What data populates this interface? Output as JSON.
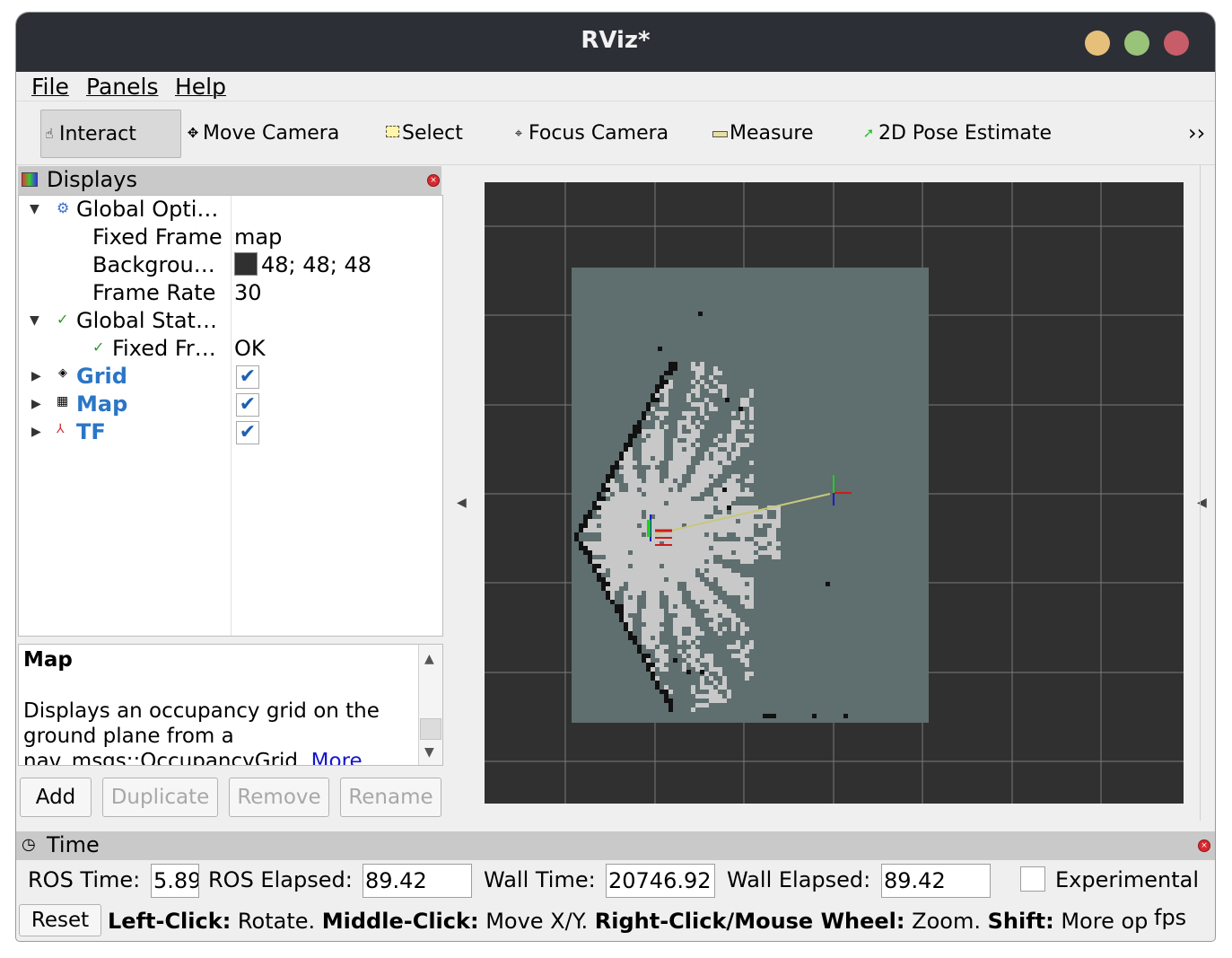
{
  "window": {
    "title": "RViz*"
  },
  "colors": {
    "close": "#c75d68",
    "minimize": "#e6c07b",
    "maximize": "#98c379"
  },
  "menu": [
    "File",
    "Panels",
    "Help"
  ],
  "toolbar": {
    "tools": [
      {
        "label": "Interact",
        "icon": "hand-icon"
      },
      {
        "label": "Move Camera",
        "icon": "move-icon"
      },
      {
        "label": "Select",
        "icon": "select-icon"
      },
      {
        "label": "Focus Camera",
        "icon": "focus-icon"
      },
      {
        "label": "Measure",
        "icon": "ruler-icon"
      },
      {
        "label": "2D Pose Estimate",
        "icon": "pose-arrow-icon"
      }
    ],
    "overflow": "››"
  },
  "displays": {
    "title": "Displays",
    "rows": [
      {
        "label": "Global Opti…",
        "value": ""
      },
      {
        "label": "Fixed Frame",
        "value": "map"
      },
      {
        "label": "Backgrou…",
        "value": "48; 48; 48"
      },
      {
        "label": "Frame Rate",
        "value": "30"
      },
      {
        "label": "Global Stat…",
        "value": ""
      },
      {
        "label": "Fixed Fr…",
        "value": "OK"
      },
      {
        "label": "Grid",
        "value": ""
      },
      {
        "label": "Map",
        "value": ""
      },
      {
        "label": "TF",
        "value": ""
      }
    ],
    "checkmark": "✓"
  },
  "description": {
    "title": "Map",
    "body": "Displays an occupancy grid on the ground plane from a nav_msgs::OccupancyGrid",
    "more": "More"
  },
  "buttons": {
    "add": "Add",
    "duplicate": "Duplicate",
    "remove": "Remove",
    "rename": "Rename"
  },
  "time": {
    "title": "Time",
    "ros_time_label": "ROS Time:",
    "ros_time": "5.89",
    "ros_elapsed_label": "ROS Elapsed:",
    "ros_elapsed": "89.42",
    "wall_time_label": "Wall Time:",
    "wall_time": "20746.92",
    "wall_elapsed_label": "Wall Elapsed:",
    "wall_elapsed": "89.42",
    "experimental": "Experimental"
  },
  "status": {
    "reset": "Reset",
    "lc": "Left-Click:",
    "lc_t": " Rotate. ",
    "mc": "Middle-Click:",
    "mc_t": " Move X/Y. ",
    "rc": "Right-Click/Mouse Wheel:",
    "rc_t": " Zoom. ",
    "sh": "Shift:",
    "sh_t": " More op",
    "fps": "fps"
  }
}
